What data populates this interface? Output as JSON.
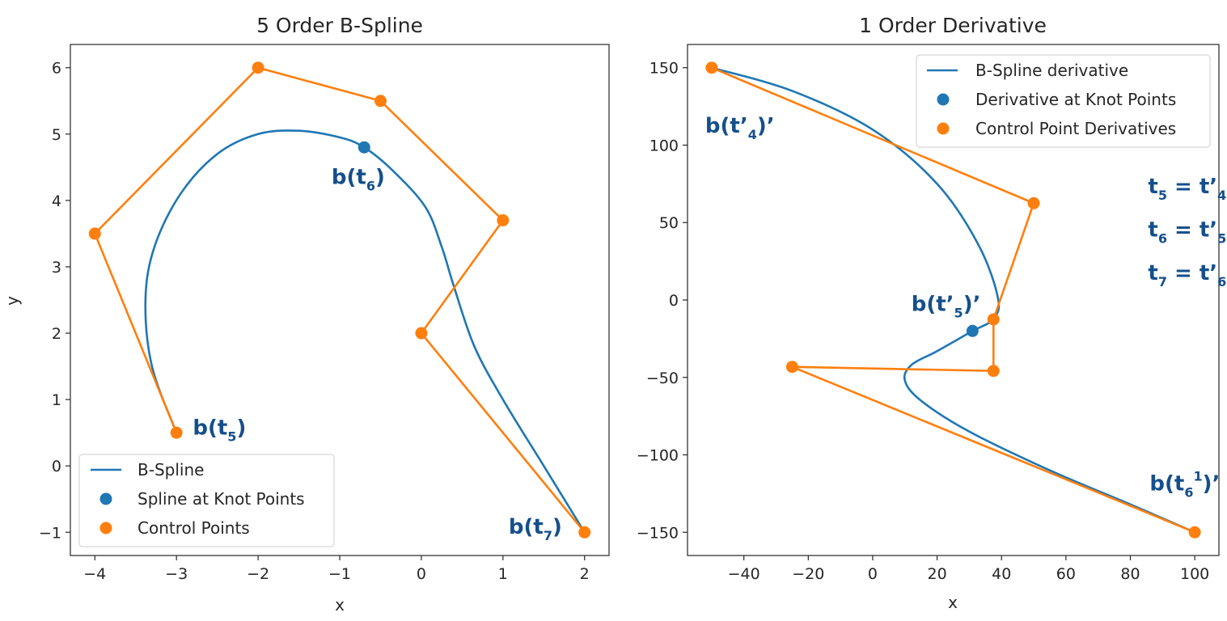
{
  "colors": {
    "curve": "#1f77b4",
    "control": "#ff7f0e",
    "annotation": "#154f8c",
    "axis": "#262626"
  },
  "chart_data": [
    {
      "type": "line",
      "title": "5 Order B-Spline",
      "xlabel": "x",
      "ylabel": "y",
      "xlim": [
        -4.3,
        2.3
      ],
      "ylim": [
        -1.35,
        6.35
      ],
      "xticks": [
        -4,
        -3,
        -2,
        -1,
        0,
        1,
        2
      ],
      "yticks": [
        -1,
        0,
        1,
        2,
        3,
        4,
        5,
        6
      ],
      "xtick_labels": [
        "−4",
        "−3",
        "−2",
        "−1",
        "0",
        "1",
        "2"
      ],
      "ytick_labels": [
        "−1",
        "0",
        "1",
        "2",
        "3",
        "4",
        "5",
        "6"
      ],
      "grid": false,
      "legend_position": "lower-left",
      "series": [
        {
          "name": "B-Spline",
          "kind": "line",
          "x": [
            -3.0,
            -3.3,
            -3.38,
            -3.27,
            -2.95,
            -2.5,
            -2.0,
            -1.5,
            -1.0,
            -0.7,
            -0.35,
            0.05,
            0.25,
            0.4,
            0.65,
            1.0,
            1.5,
            2.0
          ],
          "y": [
            0.5,
            1.5,
            2.5,
            3.3,
            4.1,
            4.7,
            5.0,
            5.05,
            4.95,
            4.8,
            4.45,
            3.9,
            3.3,
            2.7,
            1.8,
            1.0,
            0.0,
            -1.0
          ]
        },
        {
          "name": "Spline at Knot Points",
          "kind": "scatter",
          "x": [
            -0.7
          ],
          "y": [
            4.8
          ]
        },
        {
          "name": "Control Points",
          "kind": "line+scatter",
          "x": [
            -3,
            -4,
            -2,
            -0.5,
            1,
            0,
            2
          ],
          "y": [
            0.5,
            3.5,
            6,
            5.5,
            3.7,
            2,
            -1
          ]
        }
      ],
      "annotations": [
        {
          "base": "b(t",
          "sub": "6",
          "tail": ")",
          "x": -1.1,
          "y": 4.25
        },
        {
          "base": "b(t",
          "sub": "5",
          "tail": ")",
          "x": -2.8,
          "y": 0.47
        },
        {
          "base": "b(t",
          "sub": "7",
          "tail": ")",
          "x": 1.07,
          "y": -1.02
        }
      ]
    },
    {
      "type": "line",
      "title": "1 Order Derivative",
      "xlabel": "x",
      "ylabel": "",
      "xlim": [
        -57.5,
        107.5
      ],
      "ylim": [
        -165,
        165
      ],
      "xticks": [
        -40,
        -20,
        0,
        20,
        40,
        60,
        80,
        100
      ],
      "yticks": [
        -150,
        -100,
        -50,
        0,
        50,
        100,
        150
      ],
      "xtick_labels": [
        "−40",
        "−20",
        "0",
        "20",
        "40",
        "60",
        "80",
        "100"
      ],
      "ytick_labels": [
        "−150",
        "−100",
        "−50",
        "0",
        "50",
        "100",
        "150"
      ],
      "grid": false,
      "legend_position": "upper-right",
      "series": [
        {
          "name": "B-Spline derivative",
          "kind": "line",
          "x": [
            -50,
            -25,
            0,
            20,
            33,
            39,
            37,
            31,
            20,
            12,
            10,
            15,
            30,
            55,
            80,
            100
          ],
          "y": [
            150,
            135,
            110,
            75,
            35,
            0,
            -13,
            -20,
            -33,
            -42,
            -52,
            -65,
            -85,
            -110,
            -132,
            -150
          ]
        },
        {
          "name": "Derivative at Knot Points",
          "kind": "scatter",
          "x": [
            31
          ],
          "y": [
            -20
          ]
        },
        {
          "name": "Control Point Derivatives",
          "kind": "line+scatter",
          "x": [
            -50,
            50,
            37.5,
            37.5,
            -25,
            100
          ],
          "y": [
            150,
            62.5,
            -12.5,
            -45.8,
            -43.2,
            -150
          ]
        }
      ],
      "annotations": [
        {
          "base": "b(t’",
          "sub": "4",
          "tail": ")’",
          "x": -52,
          "y": 108
        },
        {
          "base": "b(t’",
          "sub": "5",
          "tail": ")’",
          "x": 12,
          "y": -7
        },
        {
          "base": "b(t",
          "sub": "6",
          "sup": "1",
          "tail": ")’",
          "x": 86,
          "y": -123
        }
      ],
      "side_text": [
        {
          "a": "t",
          "asub": "5",
          "mid": " = t’",
          "bsub": "4",
          "x": 85.5,
          "y": 69
        },
        {
          "a": "t",
          "asub": "6",
          "mid": " = t’",
          "bsub": "5",
          "x": 85.5,
          "y": 41
        },
        {
          "a": "t",
          "asub": "7",
          "mid": " = t’",
          "bsub": "6",
          "x": 85.5,
          "y": 13
        }
      ]
    }
  ]
}
